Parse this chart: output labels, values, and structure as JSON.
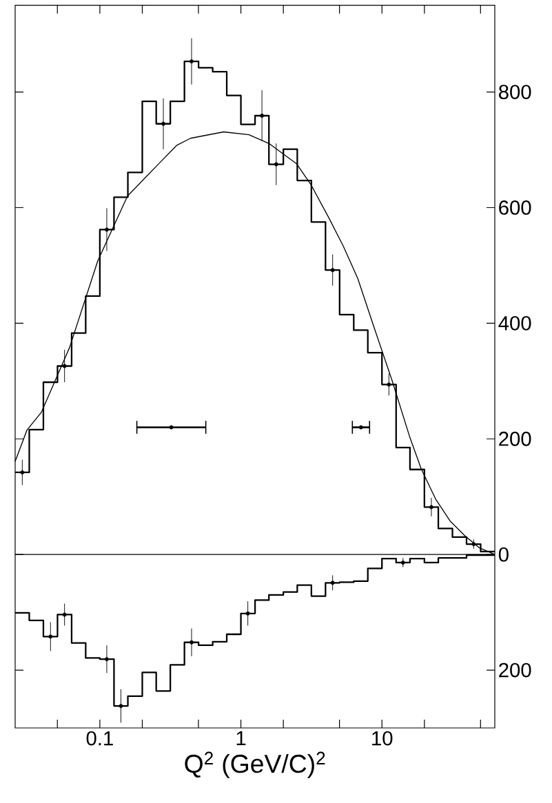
{
  "chart_data": {
    "type": "histogram",
    "xlabel": "Q$^{2}$ (GeV/C)$^{2}$",
    "log": "x",
    "grid": false,
    "xlim": [
      0.0251,
      63.1
    ],
    "ylim": [
      -300,
      950
    ],
    "xticks": [
      {
        "value": 0.05,
        "label": null
      },
      0.1,
      {
        "value": 0.2,
        "label": null
      },
      {
        "value": 0.5,
        "label": null
      },
      1,
      {
        "value": 2,
        "label": null
      },
      {
        "value": 5,
        "label": null
      },
      10,
      {
        "value": 20,
        "label": null
      },
      {
        "value": 50,
        "label": null
      }
    ],
    "yticks": [
      {
        "value": -200,
        "label": "200"
      },
      0,
      200,
      400,
      600,
      800
    ],
    "ref_lines": [
      {
        "axis": "y",
        "value": 0,
        "color": "#000000"
      }
    ],
    "bins": [
      0.0251,
      0.0316,
      0.0398,
      0.0501,
      0.0631,
      0.0794,
      0.1,
      0.126,
      0.158,
      0.2,
      0.251,
      0.316,
      0.398,
      0.501,
      0.631,
      0.794,
      1,
      1.26,
      1.58,
      2,
      2.51,
      3.16,
      3.98,
      5.01,
      6.31,
      7.94,
      10,
      12.6,
      15.8,
      20,
      25.1,
      31.6,
      39.8,
      50.1,
      63.1
    ],
    "series": [
      {
        "color": "#000000",
        "values": [
          142,
          216,
          298,
          326,
          383,
          447,
          562,
          618,
          661,
          784,
          745,
          784,
          853,
          842,
          835,
          794,
          744,
          759,
          675,
          701,
          647,
          575,
          492,
          415,
          388,
          349,
          294,
          185,
          147,
          82,
          45,
          30,
          18,
          5
        ]
      },
      {
        "color": "#000000",
        "values": [
          -101,
          -114,
          -142,
          -104,
          -153,
          -179,
          -181,
          -262,
          -245,
          -204,
          -236,
          -191,
          -152,
          -157,
          -151,
          -138,
          -102,
          -79,
          -70,
          -65,
          -53,
          -72,
          -49,
          -48,
          -46,
          -24,
          -7,
          -14,
          -7,
          -14,
          -6,
          -6,
          -1,
          -1
        ]
      },
      {
        "type": "scatter",
        "color": "#000000",
        "marker": "none",
        "x": [
          0.0282,
          0.0562,
          0.112,
          0.282,
          0.447,
          1.41,
          1.78,
          4.47,
          11.2,
          22.4,
          44.7
        ],
        "values": [
          142,
          326,
          562,
          745,
          853,
          759,
          675,
          492,
          294,
          82,
          18
        ],
        "errors": [
          22,
          28,
          37,
          44,
          40,
          44,
          36,
          27,
          19,
          16,
          8
        ]
      },
      {
        "type": "scatter",
        "color": "#000000",
        "marker": "none",
        "x": [
          0.0447,
          0.0562,
          0.112,
          0.141,
          0.447,
          1.12,
          4.47,
          14.1
        ],
        "values": [
          -142,
          -104,
          -181,
          -262,
          -152,
          -102,
          -49,
          -14
        ],
        "errors": [
          25,
          19,
          24,
          29,
          24,
          21,
          13,
          8
        ]
      },
      {
        "type": "line",
        "color": "#000000",
        "marker": "none",
        "line_style": "solid",
        "x": [
          0.0251,
          0.0304,
          0.0385,
          0.061,
          0.0967,
          0.157,
          0.257,
          0.352,
          0.44,
          0.755,
          1.14,
          1.58,
          2.48,
          3.15,
          4.21,
          5.33,
          6.75,
          8.73,
          11.8,
          15.8,
          19.0,
          24.0,
          30.4,
          38.5,
          48.7,
          63.1
        ],
        "values": [
          161,
          215,
          246,
          358,
          508,
          620,
          674,
          708,
          720,
          731,
          726,
          711,
          676,
          639,
          582,
          533,
          477,
          395,
          301,
          202,
          148,
          96,
          58,
          33,
          12,
          0
        ]
      },
      {
        "type": "scatter",
        "color": "#000000",
        "marker": "none",
        "x": [
          0.321,
          7.1
        ],
        "values": [
          220,
          220
        ],
        "xerrors": [
          [
            0.183,
            0.564
          ],
          [
            6.17,
            8.17
          ]
        ]
      }
    ]
  }
}
